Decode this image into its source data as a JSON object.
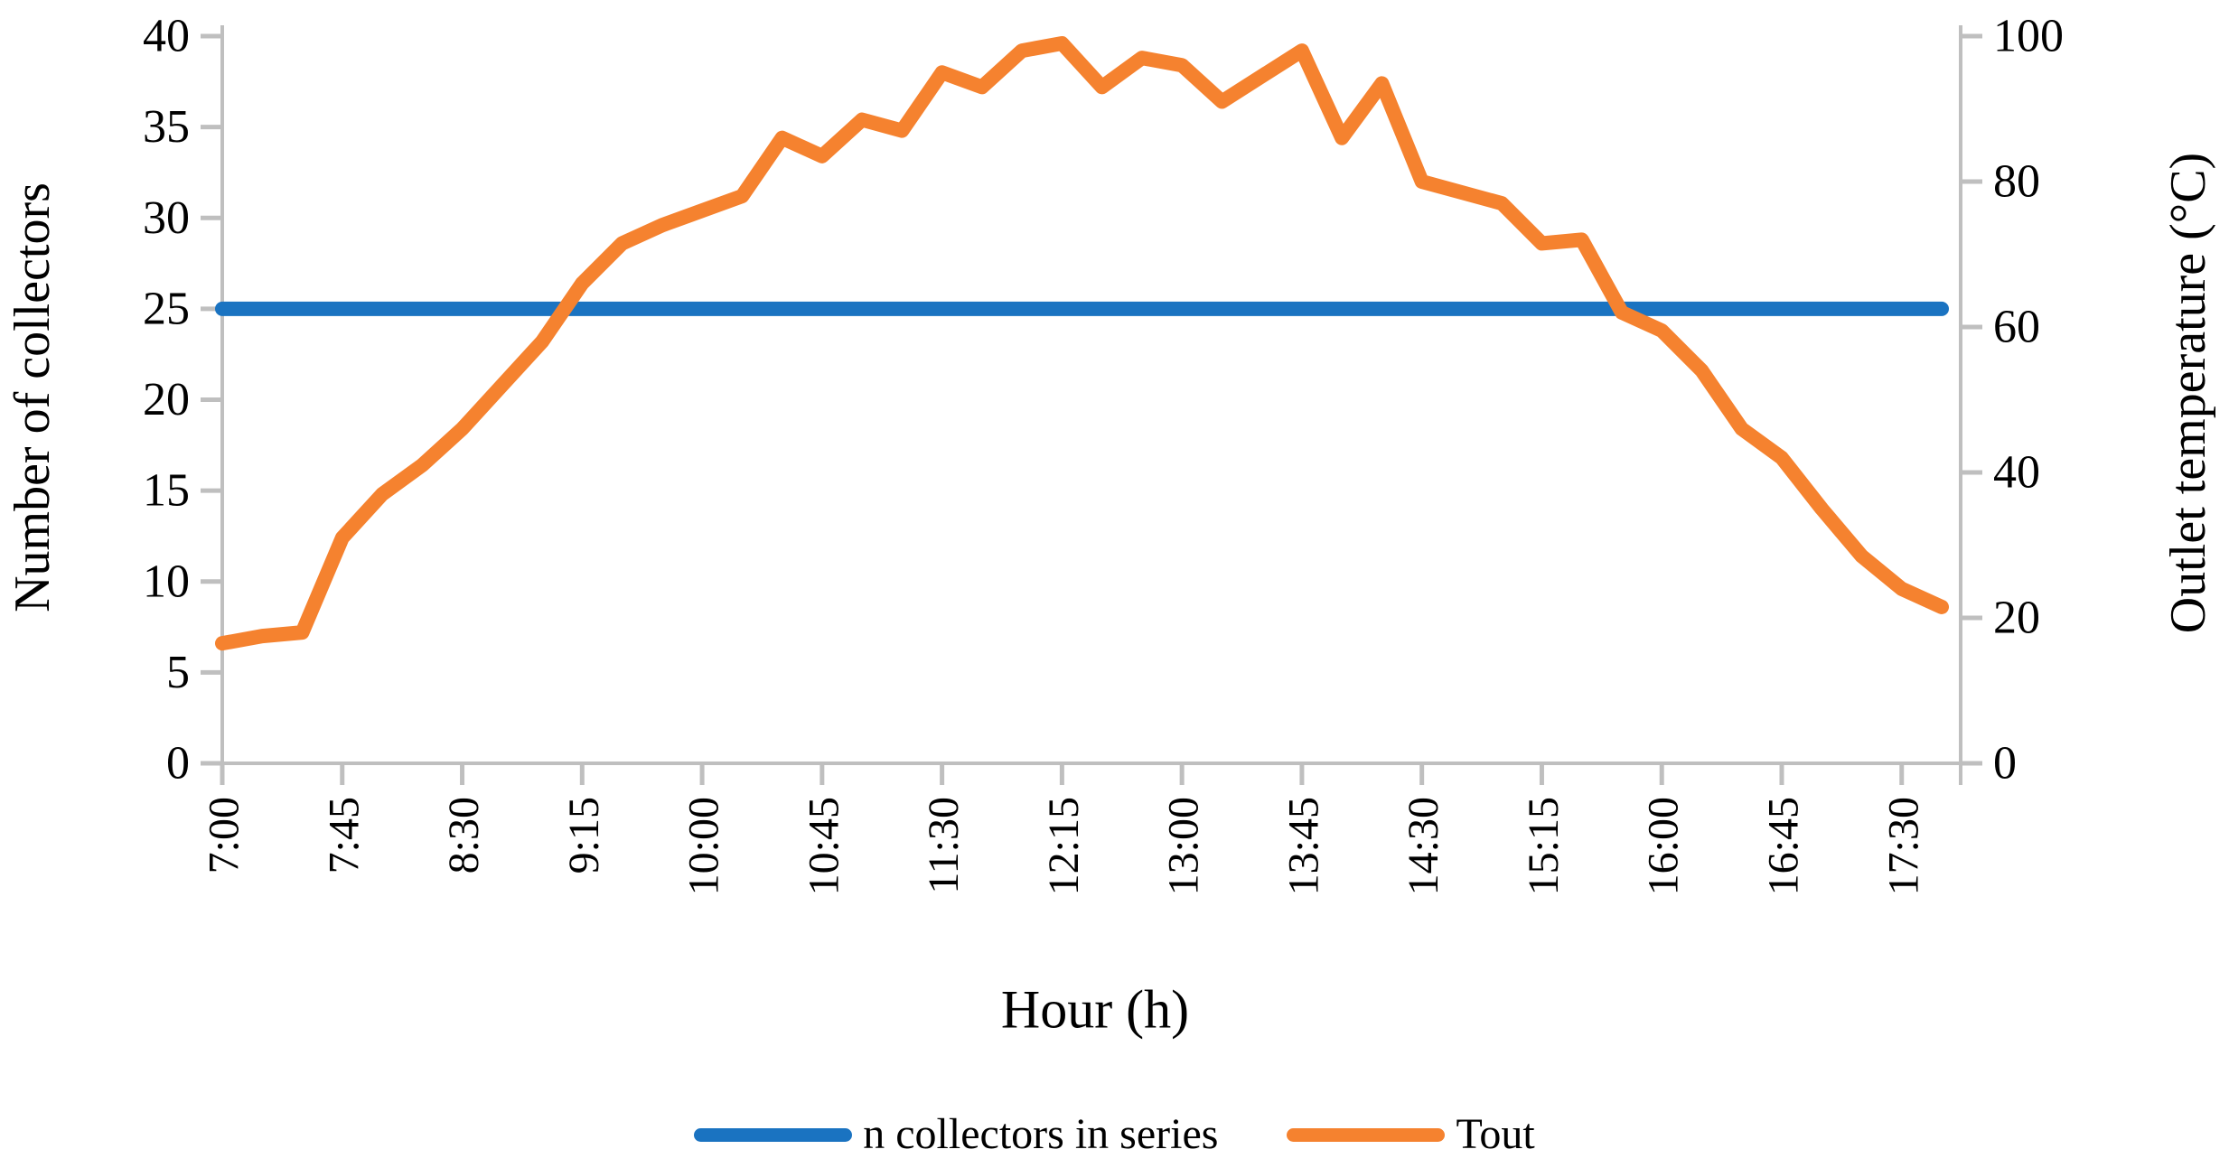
{
  "chart_data": {
    "type": "line",
    "title": "",
    "x": [
      "7:00",
      "7:15",
      "7:30",
      "7:45",
      "8:00",
      "8:15",
      "8:30",
      "8:45",
      "9:00",
      "9:15",
      "9:30",
      "9:45",
      "10:00",
      "10:15",
      "10:30",
      "10:45",
      "11:00",
      "11:15",
      "11:30",
      "11:45",
      "12:00",
      "12:15",
      "12:30",
      "12:45",
      "13:00",
      "13:15",
      "13:30",
      "13:45",
      "14:00",
      "14:15",
      "14:30",
      "14:45",
      "15:00",
      "15:15",
      "15:30",
      "15:45",
      "16:00",
      "16:15",
      "16:30",
      "16:45",
      "17:00",
      "17:15",
      "17:30",
      "17:45"
    ],
    "x_axis": {
      "title": "Hour (h)",
      "tick_every": 3
    },
    "left_axis": {
      "title": "Number of collectors",
      "min": 0,
      "max": 40,
      "step": 5
    },
    "right_axis": {
      "title": "Outlet temperature (°C)",
      "min": 0,
      "max": 100,
      "step": 20
    },
    "grid": false,
    "legend_position": "bottom",
    "series": [
      {
        "name": "n collectors in series",
        "axis": "left",
        "color": "#1A73C1",
        "values": [
          25,
          25,
          25,
          25,
          25,
          25,
          25,
          25,
          25,
          25,
          25,
          25,
          25,
          25,
          25,
          25,
          25,
          25,
          25,
          25,
          25,
          25,
          25,
          25,
          25,
          25,
          25,
          25,
          25,
          25,
          25,
          25,
          25,
          25,
          25,
          25,
          25,
          25,
          25,
          25,
          25,
          25,
          25,
          25
        ]
      },
      {
        "name": "Tout",
        "axis": "right",
        "color": "#F5822F",
        "values": [
          16.5,
          17.5,
          18,
          31,
          37,
          41,
          46,
          52,
          58,
          66,
          71.5,
          74,
          76,
          78,
          86,
          83.5,
          88.5,
          87,
          95,
          93,
          98,
          99,
          93,
          97,
          96,
          91,
          94.5,
          98,
          86,
          93.5,
          80,
          78.5,
          77,
          71.5,
          72,
          62,
          59.5,
          54,
          46,
          42,
          35,
          28.5,
          24,
          21.5
        ]
      }
    ]
  },
  "style": {
    "axis_color": "#BFBFBF",
    "text_color": "#000000",
    "background": "#FFFFFF"
  }
}
